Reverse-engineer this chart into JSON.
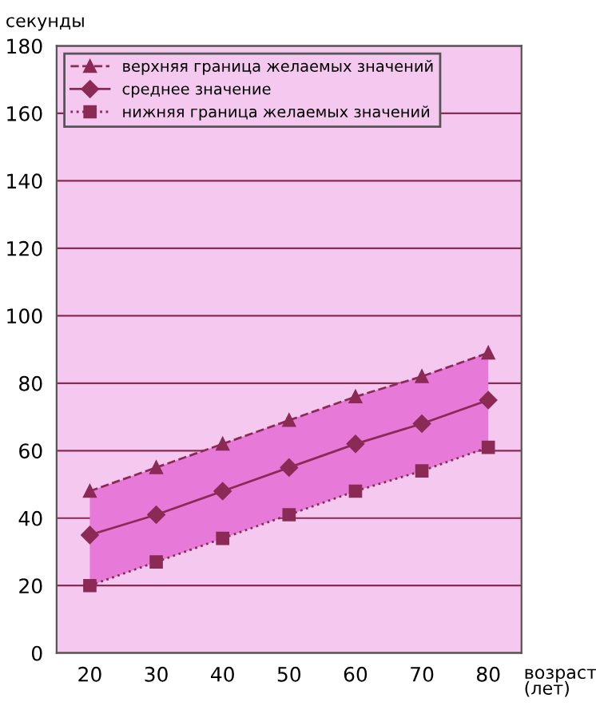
{
  "chart_data": {
    "type": "line",
    "ylabel": "секунды",
    "xlabel": "возраст\n(лет)",
    "x": [
      20,
      30,
      40,
      50,
      60,
      70,
      80
    ],
    "xlim": [
      15,
      85
    ],
    "xticks": [
      20,
      30,
      40,
      50,
      60,
      70,
      80
    ],
    "ylim": [
      0,
      180
    ],
    "yticks": [
      0,
      20,
      40,
      60,
      80,
      100,
      120,
      140,
      160,
      180
    ],
    "grid": "y",
    "legend": "top left",
    "series": [
      {
        "name": "верхняя граница желаемых значений",
        "color": "#8b2b55",
        "marker": "triangle",
        "line_style": "dashed",
        "values": [
          48,
          55,
          62,
          69,
          76,
          82,
          89
        ]
      },
      {
        "name": "среднее значение",
        "color": "#8b2b55",
        "marker": "diamond",
        "line_style": "solid",
        "values": [
          35,
          41,
          48,
          55,
          62,
          68,
          75
        ],
        "lower": [
          20,
          27,
          34,
          41,
          48,
          54,
          61
        ],
        "upper": [
          48,
          55,
          62,
          69,
          76,
          82,
          89
        ]
      },
      {
        "name": "нижняя граница желаемых значений",
        "color": "#8b2b55",
        "marker": "square",
        "line_style": "dotted",
        "values": [
          20,
          27,
          34,
          41,
          48,
          54,
          61
        ]
      }
    ]
  }
}
